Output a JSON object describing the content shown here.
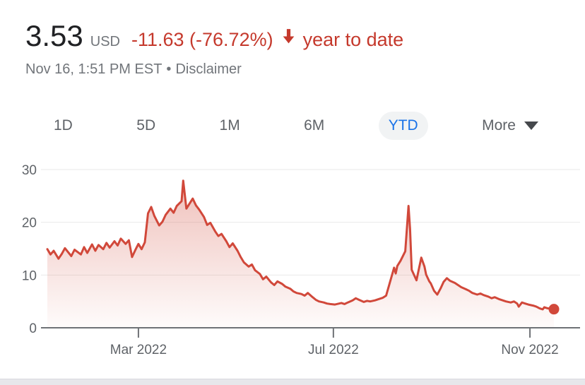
{
  "header": {
    "price": "3.53",
    "currency": "USD",
    "change": "-11.63 (-76.72%)",
    "change_direction": "down",
    "period_label": "year to date",
    "timestamp": "Nov 16, 1:51 PM EST",
    "separator": "•",
    "disclaimer_label": "Disclaimer",
    "negative_color": "#c5392c"
  },
  "tabs": {
    "items": [
      {
        "label": "1D",
        "active": false
      },
      {
        "label": "5D",
        "active": false
      },
      {
        "label": "1M",
        "active": false
      },
      {
        "label": "6M",
        "active": false
      },
      {
        "label": "YTD",
        "active": true
      },
      {
        "label": "More",
        "active": false,
        "has_dropdown": true
      }
    ],
    "active_color": "#1a73e8",
    "active_background": "#f1f3f4"
  },
  "icons": {
    "down_arrow": "down-arrow-icon",
    "dropdown": "dropdown-arrow-icon"
  },
  "chart_data": {
    "type": "area",
    "title": "Stock price, year to date",
    "line_color": "#d1483a",
    "marker_color": "#d1483a",
    "grid_color": "#e9e9e9",
    "axis_color": "#6f7276",
    "tick_label_color": "#5f6368",
    "area_gradient_top": "rgba(209,72,56,0.34)",
    "area_gradient_bottom": "rgba(209,72,56,0.02)",
    "grid": true,
    "legend": false,
    "ylim": [
      0,
      30
    ],
    "y_ticks": [
      0,
      10,
      20,
      30
    ],
    "x_ticks": [
      {
        "label": "Mar 2022",
        "day": 60
      },
      {
        "label": "Jul 2022",
        "day": 182
      },
      {
        "label": "Nov 2022",
        "day": 305
      }
    ],
    "x_unit": "day-of-year 2022",
    "x_days": [
      3,
      5,
      7,
      10,
      12,
      14,
      18,
      20,
      24,
      26,
      28,
      31,
      33,
      35,
      38,
      40,
      42,
      45,
      47,
      49,
      52,
      54,
      56,
      58,
      60,
      62,
      64,
      66,
      68,
      70,
      73,
      75,
      77,
      80,
      82,
      84,
      87,
      88,
      90,
      94,
      96,
      98,
      101,
      103,
      105,
      108,
      110,
      112,
      115,
      117,
      119,
      122,
      124,
      126,
      129,
      131,
      133,
      136,
      138,
      140,
      143,
      145,
      147,
      150,
      152,
      155,
      157,
      159,
      162,
      164,
      166,
      169,
      171,
      173,
      176,
      178,
      180,
      183,
      187,
      189,
      191,
      194,
      196,
      198,
      201,
      203,
      205,
      208,
      210,
      213,
      215,
      217,
      220,
      221,
      222,
      224,
      227,
      229,
      230,
      231,
      234,
      235,
      237,
      239,
      240,
      242,
      243,
      245,
      247,
      249,
      251,
      253,
      255,
      258,
      260,
      262,
      265,
      267,
      269,
      272,
      274,
      276,
      279,
      281,
      283,
      286,
      288,
      290,
      293,
      295,
      297,
      298,
      300,
      302,
      304,
      307,
      309,
      311,
      313,
      314,
      316,
      318,
      320
    ],
    "values": [
      14.9,
      13.9,
      14.6,
      13.1,
      14.0,
      15.1,
      13.6,
      14.8,
      13.9,
      15.3,
      14.2,
      15.8,
      14.6,
      15.7,
      14.9,
      16.1,
      15.2,
      16.4,
      15.6,
      16.9,
      15.9,
      16.6,
      13.4,
      14.7,
      15.9,
      14.9,
      16.2,
      21.7,
      22.9,
      21.2,
      19.4,
      20.1,
      21.4,
      22.6,
      21.8,
      23.1,
      24.0,
      27.9,
      22.6,
      24.5,
      23.2,
      22.4,
      21.0,
      19.5,
      19.9,
      18.3,
      17.4,
      17.8,
      16.4,
      15.3,
      16.0,
      14.6,
      13.4,
      12.4,
      11.6,
      12.0,
      10.9,
      10.2,
      9.2,
      9.7,
      8.6,
      8.1,
      8.8,
      8.3,
      7.8,
      7.4,
      6.9,
      6.6,
      6.4,
      6.1,
      6.6,
      5.8,
      5.3,
      5.0,
      4.8,
      4.6,
      4.5,
      4.4,
      4.7,
      4.5,
      4.8,
      5.2,
      5.6,
      5.3,
      4.9,
      5.1,
      5.0,
      5.2,
      5.4,
      5.7,
      6.1,
      8.2,
      11.4,
      10.3,
      11.7,
      12.7,
      14.5,
      23.1,
      18.7,
      11.0,
      9.0,
      10.4,
      13.3,
      11.6,
      10.1,
      8.8,
      8.4,
      7.0,
      6.3,
      7.4,
      8.7,
      9.4,
      8.9,
      8.5,
      8.1,
      7.7,
      7.3,
      7.0,
      6.6,
      6.3,
      6.5,
      6.2,
      5.9,
      5.6,
      5.8,
      5.4,
      5.2,
      5.0,
      4.8,
      5.0,
      4.6,
      4.0,
      4.8,
      4.6,
      4.4,
      4.2,
      4.0,
      3.7,
      3.5,
      3.9,
      3.7,
      3.6,
      3.53
    ],
    "end_marker": {
      "day": 320,
      "value": 3.53
    }
  }
}
